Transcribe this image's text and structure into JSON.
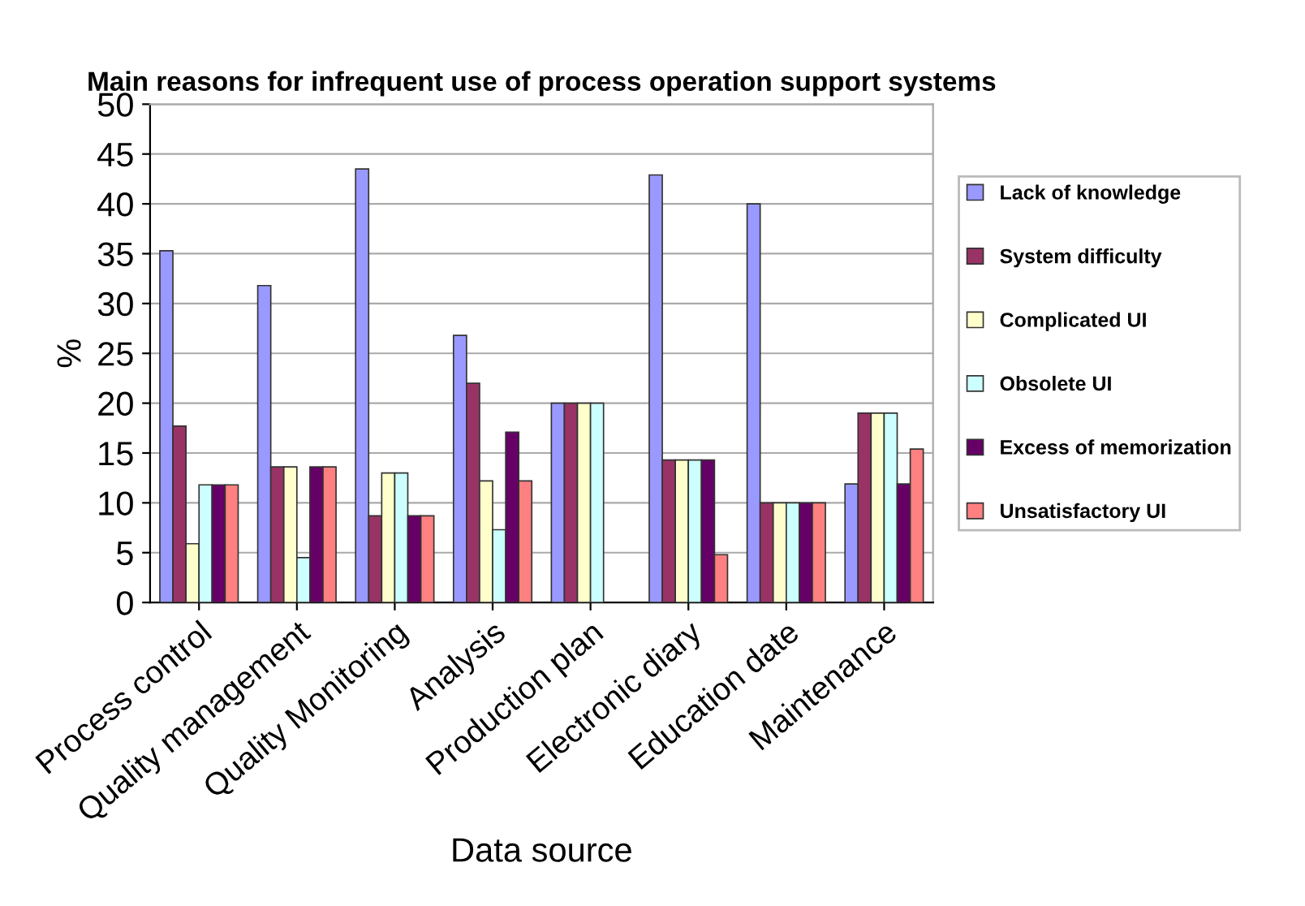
{
  "chart_data": {
    "type": "bar",
    "title": "Main reasons for infrequent use of process operation support systems",
    "xlabel": "Data source",
    "ylabel": "%",
    "categories": [
      "Process control",
      "Quality management",
      "Quality Monitoring",
      "Analysis",
      "Production plan",
      "Electronic diary",
      "Education date",
      "Maintenance"
    ],
    "series": [
      {
        "name": "Lack of knowledge",
        "color": "#9999ff",
        "values": [
          35.3,
          31.8,
          43.5,
          26.8,
          20,
          42.9,
          40,
          11.9
        ]
      },
      {
        "name": "System difficulty",
        "color": "#993366",
        "values": [
          17.7,
          13.6,
          8.7,
          22,
          20,
          14.3,
          10,
          19
        ]
      },
      {
        "name": "Complicated UI",
        "color": "#ffffcc",
        "values": [
          5.9,
          13.6,
          13,
          12.2,
          20,
          14.3,
          10,
          19
        ]
      },
      {
        "name": "Obsolete UI",
        "color": "#ccffff",
        "values": [
          11.8,
          4.5,
          13,
          7.3,
          20,
          14.3,
          10,
          19
        ]
      },
      {
        "name": "Excess of memorization",
        "color": "#660066",
        "values": [
          11.8,
          13.6,
          8.7,
          17.1,
          null,
          14.3,
          10,
          11.9
        ]
      },
      {
        "name": "Unsatisfactory UI",
        "color": "#ff8080",
        "values": [
          11.8,
          13.6,
          8.7,
          12.2,
          null,
          4.8,
          10,
          15.4
        ]
      }
    ],
    "ylim": [
      0,
      50
    ],
    "yticks": [
      0,
      5,
      10,
      15,
      20,
      25,
      30,
      35,
      40,
      45,
      50
    ],
    "grid": "y",
    "legend": "right"
  }
}
